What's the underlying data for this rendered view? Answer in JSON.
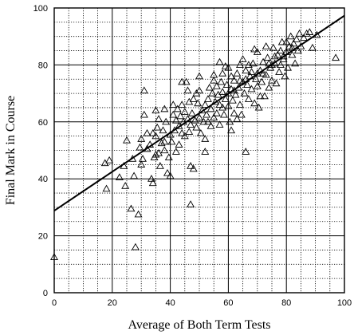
{
  "chart_data": {
    "type": "scatter",
    "title": "",
    "xlabel": "Average of Both Term Tests",
    "ylabel": "Final Mark in Course",
    "xlim": [
      0,
      100
    ],
    "ylim": [
      0,
      100
    ],
    "xticks": [
      0,
      20,
      40,
      60,
      80,
      100
    ],
    "yticks": [
      0,
      20,
      40,
      60,
      80,
      100
    ],
    "grid": true,
    "minor_grid": "dotted",
    "marker": "open-triangle",
    "regression_line": {
      "intercept": 28.8,
      "slope": 0.685
    },
    "points": [
      [
        0,
        12.5
      ],
      [
        17.5,
        45.5
      ],
      [
        18,
        36.5
      ],
      [
        19,
        46.5
      ],
      [
        22.5,
        40.5
      ],
      [
        24,
        44.5
      ],
      [
        24.5,
        37.5
      ],
      [
        25,
        53.5
      ],
      [
        26.5,
        29.5
      ],
      [
        27.5,
        41
      ],
      [
        28,
        16
      ],
      [
        29,
        27.5
      ],
      [
        29.5,
        51
      ],
      [
        30,
        54
      ],
      [
        30.5,
        47
      ],
      [
        31,
        71
      ],
      [
        31,
        62.5
      ],
      [
        32,
        56
      ],
      [
        32,
        50.5
      ],
      [
        33,
        52
      ],
      [
        33.5,
        40
      ],
      [
        34,
        38.5
      ],
      [
        34.5,
        47.5
      ],
      [
        35,
        48.5
      ],
      [
        35,
        55
      ],
      [
        35.5,
        58
      ],
      [
        36,
        61
      ],
      [
        36.5,
        44.5
      ],
      [
        37,
        52.5
      ],
      [
        37.5,
        57
      ],
      [
        38,
        50
      ],
      [
        38,
        64.5
      ],
      [
        38.5,
        60
      ],
      [
        39,
        42
      ],
      [
        39.5,
        47.5
      ],
      [
        40,
        41
      ],
      [
        40,
        55.5
      ],
      [
        40.5,
        53
      ],
      [
        41,
        62.5
      ],
      [
        41.5,
        57
      ],
      [
        42,
        60.5
      ],
      [
        42,
        49.5
      ],
      [
        42.5,
        64.5
      ],
      [
        43,
        58.5
      ],
      [
        43.5,
        62
      ],
      [
        44,
        56
      ],
      [
        44,
        66
      ],
      [
        44.5,
        60
      ],
      [
        45,
        63.5
      ],
      [
        45,
        55
      ],
      [
        45.5,
        74
      ],
      [
        46,
        61
      ],
      [
        46.5,
        67
      ],
      [
        46.5,
        56.5
      ],
      [
        47,
        44.5
      ],
      [
        47,
        31
      ],
      [
        47.5,
        63
      ],
      [
        48,
        43.5
      ],
      [
        48,
        68
      ],
      [
        48.5,
        60.5
      ],
      [
        49,
        58
      ],
      [
        49.5,
        66.5
      ],
      [
        50,
        61.5
      ],
      [
        50,
        71
      ],
      [
        50.5,
        56
      ],
      [
        51,
        64
      ],
      [
        51.5,
        60
      ],
      [
        52,
        66
      ],
      [
        52,
        49.5
      ],
      [
        52.5,
        62.5
      ],
      [
        53,
        68
      ],
      [
        53.5,
        72
      ],
      [
        54,
        58.5
      ],
      [
        54,
        64.5
      ],
      [
        54.5,
        70
      ],
      [
        55,
        61.5
      ],
      [
        55,
        76.5
      ],
      [
        55.5,
        67
      ],
      [
        56,
        63
      ],
      [
        56,
        72.5
      ],
      [
        56.5,
        69.5
      ],
      [
        57,
        59
      ],
      [
        57,
        66
      ],
      [
        57.5,
        74
      ],
      [
        58,
        70.5
      ],
      [
        58,
        77
      ],
      [
        58.5,
        62.5
      ],
      [
        59,
        68
      ],
      [
        59.5,
        73
      ],
      [
        60,
        65.5
      ],
      [
        60,
        79
      ],
      [
        60.5,
        60
      ],
      [
        61,
        71.5
      ],
      [
        61,
        76
      ],
      [
        61.5,
        67.5
      ],
      [
        62,
        63
      ],
      [
        62,
        74.5
      ],
      [
        62.5,
        69.5
      ],
      [
        63,
        77
      ],
      [
        63.5,
        72
      ],
      [
        64,
        66
      ],
      [
        64,
        80
      ],
      [
        64.5,
        62.5
      ],
      [
        65,
        74
      ],
      [
        65.5,
        70
      ],
      [
        66,
        78
      ],
      [
        66,
        49.5
      ],
      [
        66.5,
        73
      ],
      [
        67,
        68
      ],
      [
        67.5,
        76
      ],
      [
        68,
        71.5
      ],
      [
        68.5,
        80.5
      ],
      [
        69,
        66.5
      ],
      [
        69.5,
        75
      ],
      [
        70,
        72.5
      ],
      [
        70,
        84.5
      ],
      [
        70.5,
        65
      ],
      [
        71,
        78
      ],
      [
        71.5,
        74
      ],
      [
        72,
        81
      ],
      [
        72.5,
        69
      ],
      [
        73,
        76.5
      ],
      [
        73.5,
        82.5
      ],
      [
        74,
        72
      ],
      [
        74.5,
        79
      ],
      [
        75,
        74.5
      ],
      [
        75.5,
        86
      ],
      [
        76,
        80.5
      ],
      [
        76.5,
        73.5
      ],
      [
        77,
        83.5
      ],
      [
        77.5,
        77.5
      ],
      [
        78,
        80
      ],
      [
        78.5,
        88
      ],
      [
        79,
        82
      ],
      [
        79.5,
        76
      ],
      [
        80,
        84.5
      ],
      [
        80.5,
        79
      ],
      [
        81,
        86.5
      ],
      [
        81.5,
        90
      ],
      [
        82,
        83.5
      ],
      [
        82.5,
        87.5
      ],
      [
        83,
        80.5
      ],
      [
        83.5,
        89
      ],
      [
        84,
        85
      ],
      [
        84.5,
        91
      ],
      [
        85,
        86.5
      ],
      [
        86,
        89.5
      ],
      [
        87,
        91
      ],
      [
        88,
        91.5
      ],
      [
        89,
        86
      ],
      [
        90.5,
        90.5
      ],
      [
        97,
        82.5
      ],
      [
        44,
        74
      ],
      [
        50,
        76
      ],
      [
        57,
        81
      ],
      [
        61,
        57
      ],
      [
        63,
        61
      ],
      [
        65,
        82
      ],
      [
        69,
        85.5
      ],
      [
        73,
        86.5
      ],
      [
        78,
        85
      ],
      [
        35,
        64
      ],
      [
        41,
        66
      ],
      [
        46,
        71
      ],
      [
        52,
        54
      ],
      [
        55,
        74.5
      ],
      [
        59,
        79.5
      ],
      [
        67,
        80
      ],
      [
        71,
        69
      ],
      [
        76,
        83
      ],
      [
        80,
        88
      ],
      [
        47,
        59
      ],
      [
        53,
        60
      ],
      [
        58,
        65
      ],
      [
        62,
        71
      ],
      [
        66,
        75
      ],
      [
        70,
        77
      ],
      [
        74,
        80.5
      ],
      [
        79,
        83
      ],
      [
        82,
        86
      ],
      [
        43,
        52
      ],
      [
        38,
        53
      ],
      [
        34,
        56
      ],
      [
        49,
        70
      ],
      [
        60,
        70
      ],
      [
        64,
        74.5
      ],
      [
        68,
        77.5
      ],
      [
        72,
        77
      ],
      [
        75,
        80
      ],
      [
        36,
        49
      ],
      [
        30,
        45
      ],
      [
        27,
        47
      ]
    ]
  }
}
